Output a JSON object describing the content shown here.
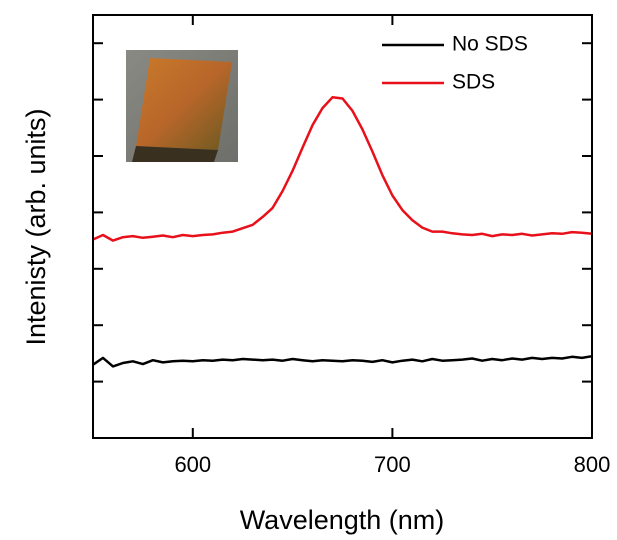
{
  "chart_data": {
    "type": "line",
    "xlabel": "Wavelength (nm)",
    "ylabel": "Intenisty (arb. units)",
    "x": [
      550,
      555,
      560,
      565,
      570,
      575,
      580,
      585,
      590,
      595,
      600,
      605,
      610,
      615,
      620,
      625,
      630,
      635,
      640,
      645,
      650,
      655,
      660,
      665,
      670,
      675,
      680,
      685,
      690,
      695,
      700,
      705,
      710,
      715,
      720,
      725,
      730,
      735,
      740,
      745,
      750,
      755,
      760,
      765,
      770,
      775,
      780,
      785,
      790,
      795,
      800
    ],
    "series": [
      {
        "name": "No SDS",
        "color": "#000000",
        "values": [
          1.3,
          1.42,
          1.27,
          1.33,
          1.36,
          1.31,
          1.38,
          1.34,
          1.36,
          1.37,
          1.36,
          1.38,
          1.37,
          1.39,
          1.38,
          1.4,
          1.39,
          1.38,
          1.39,
          1.37,
          1.4,
          1.38,
          1.36,
          1.38,
          1.37,
          1.36,
          1.38,
          1.37,
          1.35,
          1.38,
          1.34,
          1.37,
          1.39,
          1.36,
          1.4,
          1.37,
          1.38,
          1.39,
          1.41,
          1.37,
          1.4,
          1.38,
          1.41,
          1.39,
          1.42,
          1.4,
          1.42,
          1.41,
          1.44,
          1.42,
          1.45
        ]
      },
      {
        "name": "SDS",
        "color": "#e8101a",
        "values": [
          3.52,
          3.6,
          3.5,
          3.56,
          3.58,
          3.55,
          3.57,
          3.59,
          3.56,
          3.6,
          3.58,
          3.6,
          3.61,
          3.64,
          3.66,
          3.72,
          3.78,
          3.92,
          4.08,
          4.38,
          4.74,
          5.15,
          5.55,
          5.85,
          6.04,
          6.02,
          5.8,
          5.47,
          5.08,
          4.66,
          4.3,
          4.04,
          3.86,
          3.73,
          3.66,
          3.66,
          3.63,
          3.61,
          3.6,
          3.62,
          3.58,
          3.61,
          3.6,
          3.62,
          3.59,
          3.61,
          3.63,
          3.62,
          3.65,
          3.64,
          3.62
        ]
      }
    ],
    "xlim": [
      550,
      800
    ],
    "xticks": [
      600,
      700,
      800
    ],
    "ylim": [
      0,
      7.5
    ],
    "yticks": [
      1,
      2,
      3,
      4,
      5,
      6,
      7
    ],
    "ytick_labels": false,
    "legend": "upper right"
  }
}
